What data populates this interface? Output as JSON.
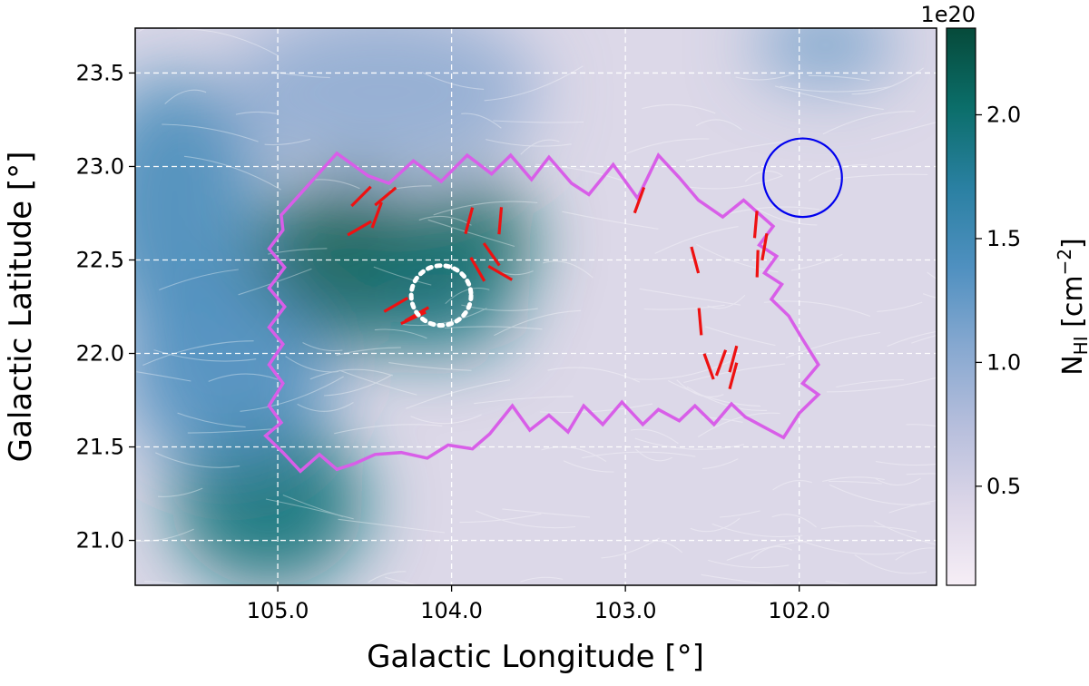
{
  "chart_data": {
    "type": "heatmap",
    "title": "",
    "xlabel": "Galactic Longitude [°]",
    "ylabel": "Galactic Latitude [°]",
    "xlim": [
      105.82,
      101.21
    ],
    "ylim": [
      20.76,
      23.74
    ],
    "x_ticks": [
      105.0,
      104.0,
      103.0,
      102.0
    ],
    "x_tick_labels": [
      "105.0",
      "104.0",
      "103.0",
      "102.0"
    ],
    "y_ticks": [
      21.0,
      21.5,
      22.0,
      22.5,
      23.0,
      23.5
    ],
    "y_tick_labels": [
      "21.0",
      "21.5",
      "22.0",
      "22.5",
      "23.0",
      "23.5"
    ],
    "grid": true,
    "colorbar": {
      "label_main": "N",
      "label_sub": "HI",
      "label_unit": " [cm",
      "label_exp": "−2",
      "label_close": "]",
      "offset_text": "1e20",
      "range": [
        0.1,
        2.35
      ],
      "ticks": [
        0.5,
        1.0,
        1.5,
        2.0
      ],
      "tick_labels": [
        "0.5",
        "1.0",
        "1.5",
        "2.0"
      ],
      "colors": [
        "#f6eef6",
        "#dcd6e8",
        "#b6bedc",
        "#86a8d0",
        "#4f90c0",
        "#2a80a2",
        "#0b6e6a",
        "#064a3a"
      ]
    },
    "background_blobs": [
      {
        "name": "cloud-west-core",
        "l": 104.6,
        "b": 22.48,
        "rl": 0.55,
        "rb": 0.45,
        "level": 2.15
      },
      {
        "name": "cloud-east-core",
        "l": 103.85,
        "b": 22.6,
        "rl": 0.32,
        "rb": 0.32,
        "level": 2.1
      },
      {
        "name": "cloud-south-core",
        "l": 104.1,
        "b": 22.22,
        "rl": 0.45,
        "rb": 0.22,
        "level": 1.9
      },
      {
        "name": "cloud-lower-left",
        "l": 105.05,
        "b": 21.2,
        "rl": 0.55,
        "rb": 0.45,
        "level": 1.95
      },
      {
        "name": "cloud-left-edge",
        "l": 105.6,
        "b": 22.8,
        "rl": 0.5,
        "rb": 0.7,
        "level": 1.45
      },
      {
        "name": "cloud-left-mid",
        "l": 105.3,
        "b": 21.9,
        "rl": 0.6,
        "rb": 0.5,
        "level": 1.4
      },
      {
        "name": "cloud-upper",
        "l": 104.4,
        "b": 23.4,
        "rl": 0.9,
        "rb": 0.45,
        "level": 1.0
      },
      {
        "name": "cloud-top-right",
        "l": 101.85,
        "b": 23.65,
        "rl": 0.4,
        "rb": 0.2,
        "level": 1.2
      }
    ],
    "footprint_polygon": [
      [
        104.98,
        22.74
      ],
      [
        104.66,
        23.07
      ],
      [
        104.48,
        22.95
      ],
      [
        104.36,
        22.91
      ],
      [
        104.22,
        23.03
      ],
      [
        104.06,
        22.92
      ],
      [
        103.91,
        23.06
      ],
      [
        103.77,
        22.96
      ],
      [
        103.66,
        23.06
      ],
      [
        103.54,
        22.93
      ],
      [
        103.44,
        23.05
      ],
      [
        103.31,
        22.91
      ],
      [
        103.21,
        22.85
      ],
      [
        103.07,
        23.01
      ],
      [
        102.93,
        22.83
      ],
      [
        102.81,
        23.06
      ],
      [
        102.69,
        22.94
      ],
      [
        102.58,
        22.82
      ],
      [
        102.44,
        22.73
      ],
      [
        102.32,
        22.82
      ],
      [
        102.15,
        22.68
      ],
      [
        102.23,
        22.58
      ],
      [
        102.13,
        22.52
      ],
      [
        102.2,
        22.43
      ],
      [
        102.1,
        22.37
      ],
      [
        102.16,
        22.29
      ],
      [
        102.06,
        22.2
      ],
      [
        101.99,
        22.09
      ],
      [
        101.89,
        21.94
      ],
      [
        101.98,
        21.84
      ],
      [
        101.89,
        21.78
      ],
      [
        102.0,
        21.68
      ],
      [
        102.09,
        21.55
      ],
      [
        102.31,
        21.66
      ],
      [
        102.39,
        21.73
      ],
      [
        102.49,
        21.62
      ],
      [
        102.6,
        21.72
      ],
      [
        102.69,
        21.64
      ],
      [
        102.81,
        21.7
      ],
      [
        102.9,
        21.62
      ],
      [
        103.02,
        21.74
      ],
      [
        103.13,
        21.62
      ],
      [
        103.24,
        21.72
      ],
      [
        103.33,
        21.58
      ],
      [
        103.44,
        21.67
      ],
      [
        103.55,
        21.59
      ],
      [
        103.65,
        21.72
      ],
      [
        103.78,
        21.57
      ],
      [
        103.88,
        21.49
      ],
      [
        104.02,
        21.51
      ],
      [
        104.14,
        21.44
      ],
      [
        104.29,
        21.47
      ],
      [
        104.44,
        21.46
      ],
      [
        104.56,
        21.41
      ],
      [
        104.66,
        21.38
      ],
      [
        104.76,
        21.46
      ],
      [
        104.87,
        21.37
      ],
      [
        104.97,
        21.47
      ],
      [
        105.07,
        21.56
      ],
      [
        104.98,
        21.63
      ],
      [
        105.05,
        21.72
      ],
      [
        104.97,
        21.84
      ],
      [
        105.05,
        21.94
      ],
      [
        104.97,
        22.05
      ],
      [
        105.05,
        22.14
      ],
      [
        104.96,
        22.25
      ],
      [
        105.05,
        22.35
      ],
      [
        104.96,
        22.46
      ],
      [
        105.05,
        22.56
      ],
      [
        104.97,
        22.66
      ]
    ],
    "polarization_vectors": [
      {
        "l": 104.52,
        "b": 22.84,
        "pa": 135
      },
      {
        "l": 104.38,
        "b": 22.84,
        "pa": 130
      },
      {
        "l": 104.43,
        "b": 22.74,
        "pa": 160
      },
      {
        "l": 104.53,
        "b": 22.67,
        "pa": 120
      },
      {
        "l": 104.2,
        "b": 22.21,
        "pa": 120
      },
      {
        "l": 104.32,
        "b": 22.26,
        "pa": 120
      },
      {
        "l": 104.22,
        "b": 22.19,
        "pa": 115
      },
      {
        "l": 103.9,
        "b": 22.71,
        "pa": 165
      },
      {
        "l": 103.72,
        "b": 22.71,
        "pa": 175
      },
      {
        "l": 103.85,
        "b": 22.45,
        "pa": 30
      },
      {
        "l": 103.77,
        "b": 22.53,
        "pa": 35
      },
      {
        "l": 103.72,
        "b": 22.43,
        "pa": 60
      },
      {
        "l": 102.92,
        "b": 22.82,
        "pa": 160
      },
      {
        "l": 102.25,
        "b": 22.69,
        "pa": 175
      },
      {
        "l": 102.2,
        "b": 22.57,
        "pa": 170
      },
      {
        "l": 102.24,
        "b": 22.48,
        "pa": 178
      },
      {
        "l": 102.6,
        "b": 22.5,
        "pa": 15
      },
      {
        "l": 102.57,
        "b": 22.17,
        "pa": 5
      },
      {
        "l": 102.45,
        "b": 21.95,
        "pa": 160
      },
      {
        "l": 102.38,
        "b": 21.97,
        "pa": 165
      },
      {
        "l": 102.38,
        "b": 21.88,
        "pa": 165
      },
      {
        "l": 102.52,
        "b": 21.93,
        "pa": 20
      }
    ],
    "circles": [
      {
        "name": "beam-circle",
        "l": 101.98,
        "b": 22.94,
        "radius_deg": 0.21,
        "color": "#0000ee",
        "style": "solid"
      },
      {
        "name": "target-region-circle",
        "l": 104.06,
        "b": 22.31,
        "radius_deg": 0.16,
        "color": "#ffffff",
        "style": "dotted"
      }
    ],
    "colors": {
      "footprint": "#d85ee8",
      "vectors": "#ee1111"
    }
  }
}
